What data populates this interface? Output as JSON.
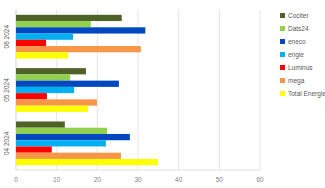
{
  "chart_data": {
    "type": "bar",
    "orientation": "horizontal",
    "grid": true,
    "legend": "right",
    "categories": [
      "04 2024",
      "05 2024",
      "06 2024"
    ],
    "series": [
      {
        "name": "Cociter",
        "color": "#4f6228",
        "values": [
          12,
          17.2,
          26
        ]
      },
      {
        "name": "Dats24",
        "color": "#92d050",
        "values": [
          22.4,
          13.3,
          18.4
        ]
      },
      {
        "name": "eneco",
        "color": "#0047c0",
        "values": [
          28,
          25.3,
          31.8
        ]
      },
      {
        "name": "engie",
        "color": "#00b0f0",
        "values": [
          22.1,
          14.3,
          14
        ]
      },
      {
        "name": "Luminus",
        "color": "#ff0000",
        "values": [
          8.8,
          7.6,
          7.4
        ]
      },
      {
        "name": "mega",
        "color": "#f79646",
        "values": [
          25.8,
          19.9,
          30.7
        ]
      },
      {
        "name": "Total Energie",
        "color": "#ffff00",
        "values": [
          34.9,
          17.7,
          12.8
        ]
      }
    ],
    "xlim": [
      0,
      60
    ],
    "xticks": [
      0,
      10,
      20,
      30,
      40,
      50,
      60
    ]
  }
}
